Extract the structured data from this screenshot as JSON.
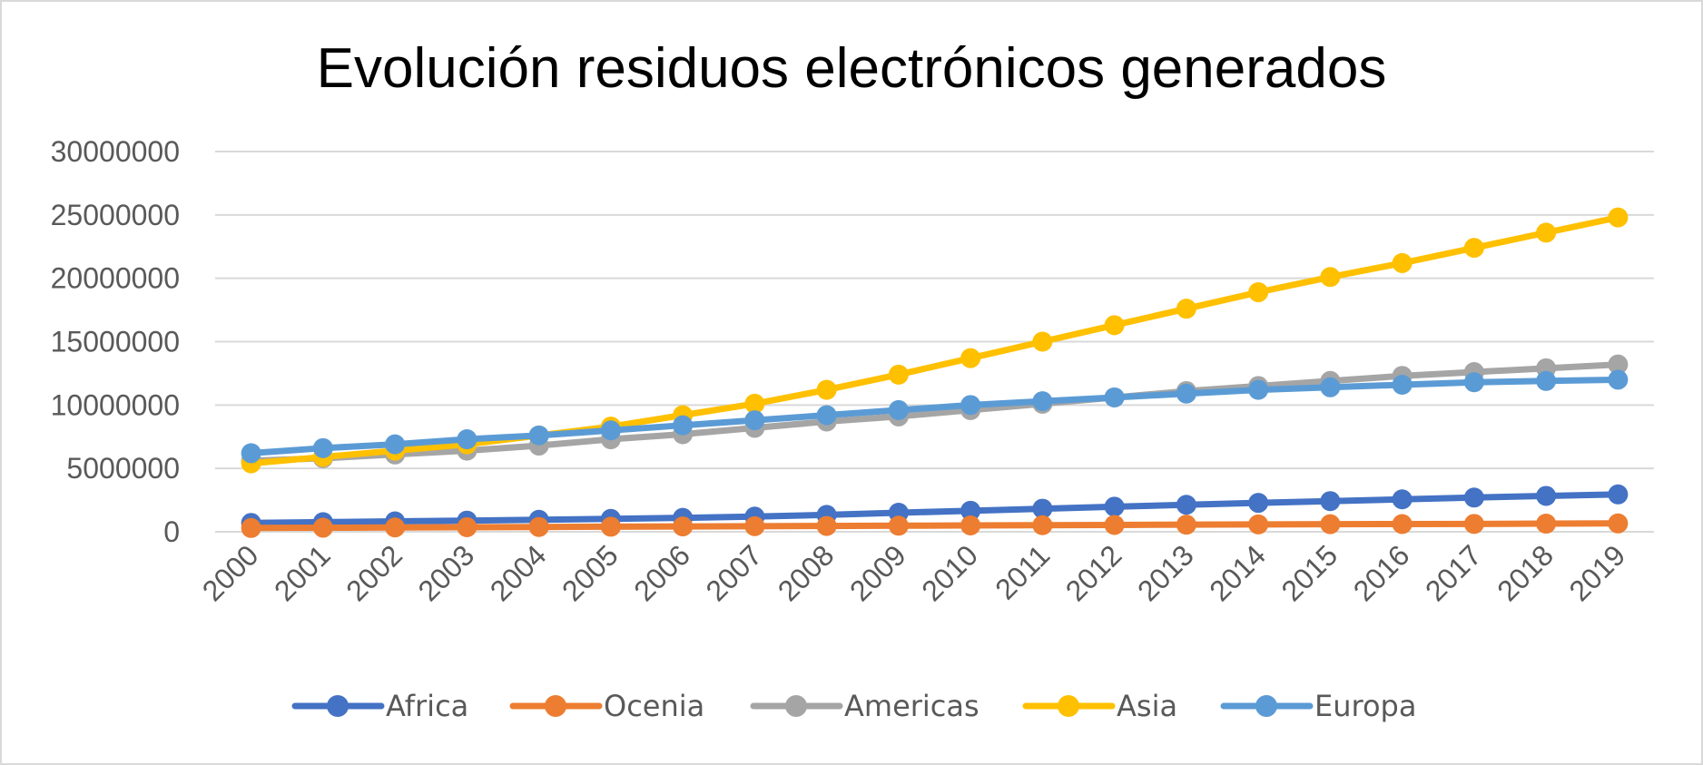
{
  "chart_data": {
    "type": "line",
    "title": "Evolución residuos electrónicos generados",
    "xlabel": "",
    "ylabel": "",
    "categories": [
      "2000",
      "2001",
      "2002",
      "2003",
      "2004",
      "2005",
      "2006",
      "2007",
      "2008",
      "2009",
      "2010",
      "2011",
      "2012",
      "2013",
      "2014",
      "2015",
      "2016",
      "2017",
      "2018",
      "2019"
    ],
    "ylim": [
      0,
      30000000
    ],
    "yticks": [
      "0",
      "5000000",
      "10000000",
      "15000000",
      "20000000",
      "25000000",
      "30000000"
    ],
    "grid": true,
    "legend": "bottom",
    "series": [
      {
        "name": "Africa",
        "color": "#4472c4",
        "values": [
          700000,
          760000,
          820000,
          880000,
          950000,
          1020000,
          1100000,
          1200000,
          1330000,
          1500000,
          1660000,
          1820000,
          1980000,
          2130000,
          2280000,
          2420000,
          2560000,
          2700000,
          2830000,
          2950000
        ]
      },
      {
        "name": "Ocenia",
        "color": "#ed7d31",
        "values": [
          300000,
          320000,
          340000,
          360000,
          380000,
          400000,
          420000,
          440000,
          460000,
          480000,
          500000,
          520000,
          540000,
          560000,
          580000,
          600000,
          610000,
          620000,
          640000,
          660000
        ]
      },
      {
        "name": "Americas",
        "color": "#a5a5a5",
        "values": [
          5600000,
          5800000,
          6100000,
          6400000,
          6800000,
          7300000,
          7700000,
          8200000,
          8700000,
          9100000,
          9600000,
          10100000,
          10600000,
          11100000,
          11500000,
          11900000,
          12300000,
          12600000,
          12900000,
          13200000
        ]
      },
      {
        "name": "Asia",
        "color": "#ffc000",
        "values": [
          5400000,
          5900000,
          6400000,
          6900000,
          7600000,
          8300000,
          9200000,
          10100000,
          11200000,
          12400000,
          13700000,
          15000000,
          16300000,
          17600000,
          18900000,
          20100000,
          21200000,
          22400000,
          23600000,
          24800000
        ]
      },
      {
        "name": "Europa",
        "color": "#5b9bd5",
        "values": [
          6200000,
          6600000,
          6900000,
          7300000,
          7600000,
          8000000,
          8400000,
          8800000,
          9200000,
          9600000,
          10000000,
          10300000,
          10600000,
          10900000,
          11200000,
          11400000,
          11600000,
          11800000,
          11900000,
          12000000
        ]
      }
    ]
  }
}
